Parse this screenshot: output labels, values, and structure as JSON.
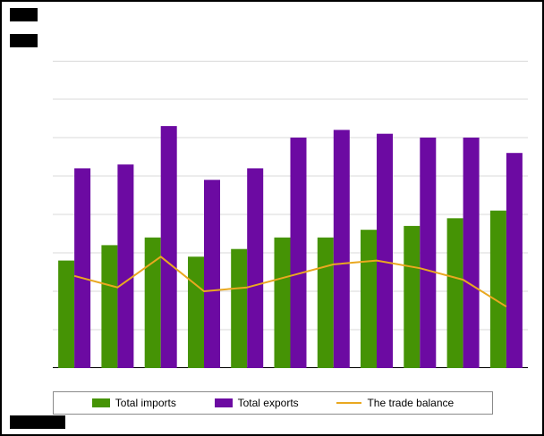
{
  "chart_data": {
    "type": "bar",
    "categories": [
      "",
      "",
      "",
      "",
      "",
      "",
      "",
      "",
      "",
      "",
      ""
    ],
    "series": [
      {
        "name": "Total imports",
        "type": "bar",
        "color": "#459305",
        "values": [
          28,
          32,
          34,
          29,
          31,
          34,
          34,
          36,
          37,
          39,
          41
        ]
      },
      {
        "name": "Total exports",
        "type": "bar",
        "color": "#6c0aa2",
        "values": [
          52,
          53,
          63,
          49,
          52,
          60,
          62,
          61,
          60,
          60,
          56
        ]
      },
      {
        "name": "The trade balance",
        "type": "line",
        "color": "#e9a820",
        "values": [
          24,
          21,
          29,
          20,
          21,
          24,
          27,
          28,
          26,
          23,
          16
        ]
      }
    ],
    "title": "",
    "xlabel": "",
    "ylabel": "",
    "ylim": [
      0,
      80
    ],
    "grid_step": 10,
    "grid": true,
    "legend_position": "bottom",
    "axis_tick_labels_visible": false
  },
  "colors": {
    "gridline": "#d8d8d8",
    "axis": "#000000",
    "frame_border": "#000000",
    "legend_border": "#8a8a8a",
    "redaction_block": "#000000"
  }
}
